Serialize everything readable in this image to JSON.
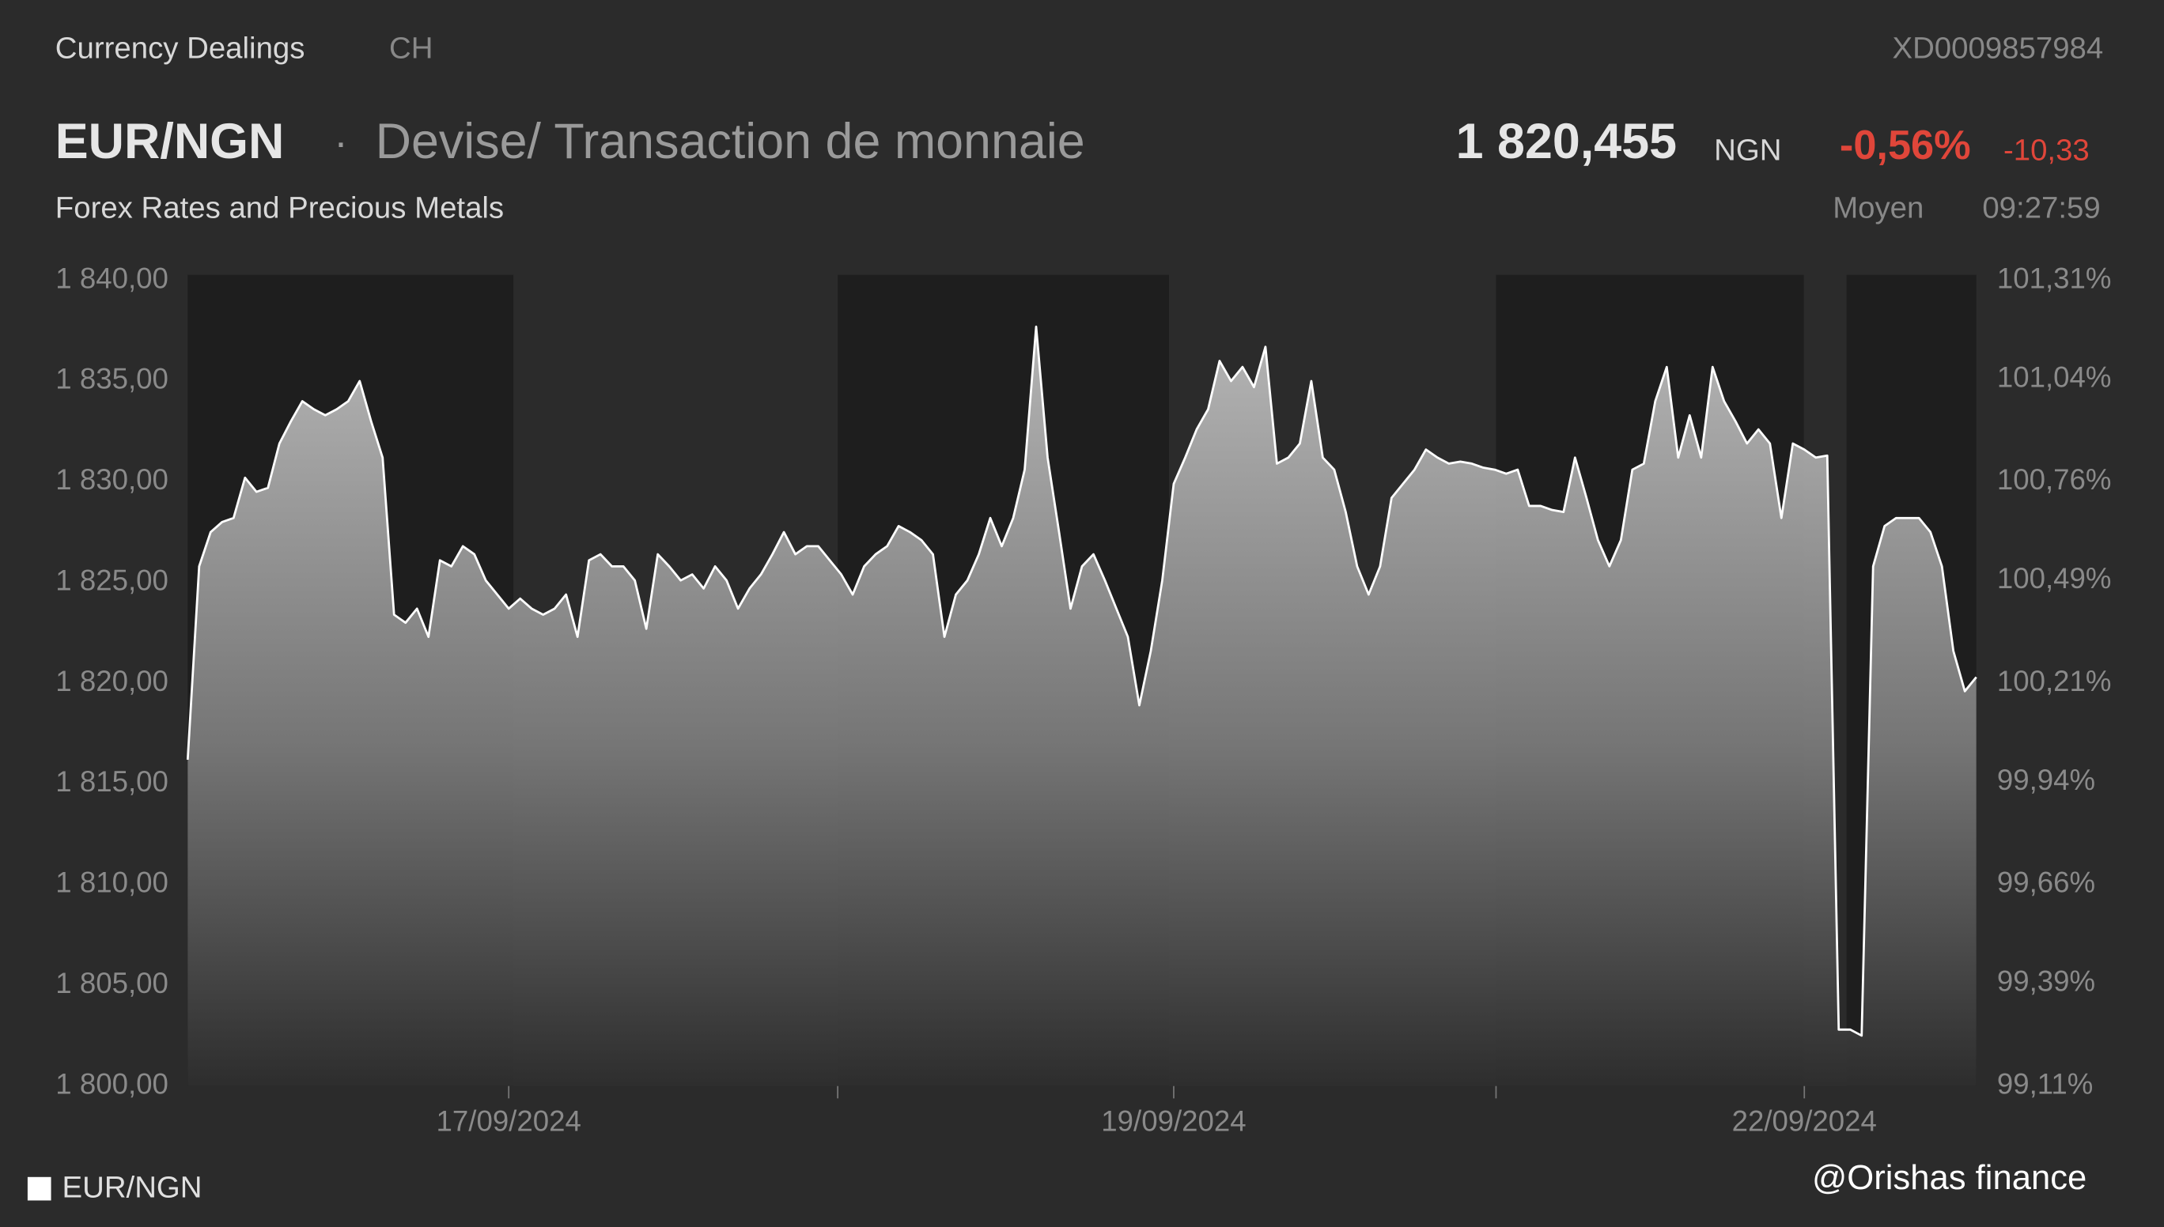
{
  "header": {
    "section": "Currency Dealings",
    "country": "CH",
    "isin": "XD0009857984",
    "symbol": "EUR/NGN",
    "separator": "·",
    "kind": "Devise/ Transaction de monnaie",
    "price": "1 820,455",
    "currency": "NGN",
    "change_pct": "-0,56%",
    "change_abs": "-10,33",
    "subtitle": "Forex Rates and Precious Metals",
    "price_type": "Moyen",
    "time": "09:27:59"
  },
  "watermark": "@Orishas finance",
  "chart_data": {
    "type": "area",
    "categories": [
      null,
      null,
      null,
      null,
      null,
      null,
      null,
      null,
      null,
      null,
      null,
      null,
      null,
      null,
      null,
      null,
      null,
      null,
      null,
      null,
      null,
      null,
      null,
      null,
      null,
      null,
      null,
      null,
      "17/09/2024",
      null,
      null,
      null,
      null,
      null,
      null,
      null,
      null,
      null,
      null,
      null,
      null,
      null,
      null,
      null,
      null,
      null,
      null,
      null,
      null,
      null,
      null,
      null,
      null,
      null,
      null,
      null,
      null,
      null,
      null,
      null,
      null,
      null,
      null,
      null,
      null,
      null,
      null,
      null,
      null,
      null,
      null,
      null,
      null,
      null,
      null,
      null,
      null,
      null,
      null,
      null,
      null,
      null,
      null,
      null,
      null,
      null,
      "19/09/2024",
      null,
      null,
      null,
      null,
      null,
      null,
      null,
      null,
      null,
      null,
      null,
      null,
      null,
      null,
      null,
      null,
      null,
      null,
      null,
      null,
      null,
      null,
      null,
      null,
      null,
      null,
      null,
      null,
      null,
      null,
      null,
      null,
      null,
      null,
      null,
      null,
      null,
      null,
      null,
      null,
      null,
      null,
      null,
      null,
      null,
      null,
      null,
      null,
      null,
      null,
      null,
      null,
      null,
      null,
      "22/09/2024",
      null,
      null,
      null,
      null,
      null,
      null,
      null,
      null,
      null,
      null,
      null,
      null,
      null,
      null,
      null
    ],
    "series": [
      {
        "name": "EUR/NGN",
        "color": "#ffffff",
        "values": [
          1816.2,
          1825.8,
          1827.5,
          1828.0,
          1828.2,
          1830.2,
          1829.5,
          1829.7,
          1831.9,
          1833.0,
          1834.0,
          1833.6,
          1833.3,
          1833.6,
          1834.0,
          1835.0,
          1833.0,
          1831.2,
          1823.4,
          1823.0,
          1823.7,
          1822.3,
          1826.1,
          1825.8,
          1826.8,
          1826.4,
          1825.1,
          1824.4,
          1823.7,
          1824.2,
          1823.7,
          1823.4,
          1823.7,
          1824.4,
          1822.3,
          1826.1,
          1826.4,
          1825.8,
          1825.8,
          1825.1,
          1822.7,
          1826.4,
          1825.8,
          1825.1,
          1825.4,
          1824.7,
          1825.8,
          1825.1,
          1823.7,
          1824.7,
          1825.4,
          1826.4,
          1827.5,
          1826.4,
          1826.8,
          1826.8,
          1826.1,
          1825.4,
          1824.4,
          1825.8,
          1826.4,
          1826.8,
          1827.8,
          1827.5,
          1827.1,
          1826.4,
          1822.3,
          1824.4,
          1825.1,
          1826.4,
          1828.2,
          1826.8,
          1828.2,
          1830.6,
          1837.7,
          1831.2,
          1827.5,
          1823.7,
          1825.8,
          1826.4,
          1825.1,
          1823.7,
          1822.3,
          1818.9,
          1821.6,
          1825.1,
          1829.9,
          1831.2,
          1832.6,
          1833.6,
          1836.0,
          1835.0,
          1835.7,
          1834.7,
          1836.7,
          1830.9,
          1831.2,
          1831.9,
          1835.0,
          1831.2,
          1830.6,
          1828.5,
          1825.8,
          1824.4,
          1825.8,
          1829.2,
          1829.9,
          1830.6,
          1831.6,
          1831.2,
          1830.9,
          1831.0,
          1830.9,
          1830.7,
          1830.6,
          1830.4,
          1830.6,
          1828.8,
          1828.8,
          1828.6,
          1828.5,
          1831.2,
          1829.2,
          1827.1,
          1825.8,
          1827.1,
          1830.6,
          1830.9,
          1834.0,
          1835.7,
          1831.2,
          1833.3,
          1831.2,
          1835.7,
          1834.0,
          1833.0,
          1831.9,
          1832.6,
          1831.9,
          1828.2,
          1831.9,
          1831.6,
          1831.2,
          1831.3,
          1802.8,
          1802.8,
          1802.5,
          1825.8,
          1827.8,
          1828.2,
          1828.2,
          1828.2,
          1827.5,
          1825.8,
          1821.6,
          1819.6,
          1820.3
        ]
      }
    ],
    "ylim": [
      1800,
      1840
    ],
    "yticks": [
      {
        "value": 1840,
        "label": "1 840,00"
      },
      {
        "value": 1835,
        "label": "1 835,00"
      },
      {
        "value": 1830,
        "label": "1 830,00"
      },
      {
        "value": 1825,
        "label": "1 825,00"
      },
      {
        "value": 1820,
        "label": "1 820,00"
      },
      {
        "value": 1815,
        "label": "1 815,00"
      },
      {
        "value": 1810,
        "label": "1 810,00"
      },
      {
        "value": 1805,
        "label": "1 805,00"
      },
      {
        "value": 1800,
        "label": "1 800,00"
      }
    ],
    "y2lim": [
      99.11,
      101.31
    ],
    "y2ticks": [
      {
        "value": 101.31,
        "label": "101,31%"
      },
      {
        "value": 101.04,
        "label": "101,04%"
      },
      {
        "value": 100.76,
        "label": "100,76%"
      },
      {
        "value": 100.49,
        "label": "100,49%"
      },
      {
        "value": 100.21,
        "label": "100,21%"
      },
      {
        "value": 99.94,
        "label": "99,94%"
      },
      {
        "value": 99.66,
        "label": "99,66%"
      },
      {
        "value": 99.39,
        "label": "99,39%"
      },
      {
        "value": 99.11,
        "label": "99,11%"
      }
    ],
    "legend": "bottom-left"
  }
}
